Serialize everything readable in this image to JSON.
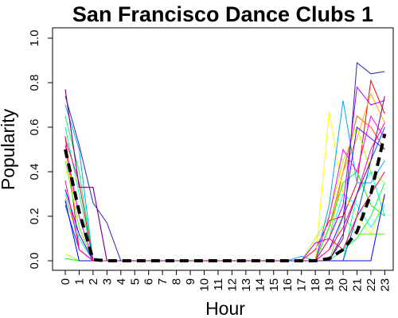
{
  "chart_data": {
    "type": "line",
    "title": "San Francisco Dance Clubs 1",
    "xlabel": "Hour",
    "ylabel": "Popularity",
    "x": [
      0,
      1,
      2,
      3,
      4,
      5,
      6,
      7,
      8,
      9,
      10,
      11,
      12,
      13,
      14,
      15,
      16,
      17,
      18,
      19,
      20,
      21,
      22,
      23
    ],
    "xticks": [
      "0",
      "1",
      "2",
      "3",
      "4",
      "5",
      "6",
      "7",
      "8",
      "9",
      "10",
      "11",
      "12",
      "13",
      "14",
      "15",
      "16",
      "17",
      "18",
      "19",
      "20",
      "21",
      "22",
      "23"
    ],
    "yticks": [
      "0.0",
      "0.2",
      "0.4",
      "0.6",
      "0.8",
      "1.0"
    ],
    "ylim": [
      0,
      1.0
    ],
    "grid": false,
    "series": [
      {
        "color": "#FF0000",
        "values": [
          0.56,
          0.05,
          0,
          0,
          0,
          0,
          0,
          0,
          0,
          0,
          0,
          0,
          0,
          0,
          0,
          0,
          0,
          0,
          0.05,
          0.18,
          0.2,
          0.35,
          0.81,
          0.66
        ]
      },
      {
        "color": "#FF5500",
        "values": [
          0.5,
          0.2,
          0,
          0,
          0,
          0,
          0,
          0,
          0,
          0,
          0,
          0,
          0,
          0,
          0,
          0,
          0,
          0,
          0,
          0.15,
          0.4,
          0.65,
          0.6,
          0.5
        ]
      },
      {
        "color": "#FFAA00",
        "values": [
          0.28,
          0.1,
          0,
          0,
          0,
          0,
          0,
          0,
          0,
          0,
          0,
          0,
          0,
          0,
          0,
          0,
          0,
          0,
          0,
          0.1,
          0.4,
          0.55,
          0.75,
          0.62
        ]
      },
      {
        "color": "#FFFF00",
        "values": [
          0.4,
          0.35,
          0,
          0,
          0,
          0,
          0,
          0,
          0,
          0,
          0,
          0,
          0,
          0,
          0,
          0,
          0,
          0,
          0,
          0.67,
          0.3,
          0.2,
          0.12,
          0.3
        ]
      },
      {
        "color": "#AAFF00",
        "values": [
          0.03,
          0,
          0,
          0,
          0,
          0,
          0,
          0,
          0,
          0,
          0,
          0,
          0,
          0,
          0,
          0,
          0,
          0,
          0.1,
          0.2,
          0.45,
          0.6,
          0.4,
          0.35
        ]
      },
      {
        "color": "#55FF00",
        "values": [
          0.45,
          0.15,
          0,
          0,
          0,
          0,
          0,
          0,
          0,
          0,
          0,
          0,
          0,
          0,
          0,
          0,
          0,
          0,
          0,
          0,
          0.2,
          0.12,
          0.12,
          0.12
        ]
      },
      {
        "color": "#00FF00",
        "values": [
          0.01,
          0,
          0,
          0,
          0,
          0,
          0,
          0,
          0,
          0,
          0,
          0,
          0,
          0,
          0,
          0,
          0,
          0,
          0,
          0.15,
          0.35,
          0.4,
          0.25,
          0.2
        ]
      },
      {
        "color": "#00FF55",
        "values": [
          0.65,
          0.4,
          0,
          0,
          0,
          0,
          0,
          0,
          0,
          0,
          0,
          0,
          0,
          0,
          0,
          0,
          0,
          0,
          0,
          0,
          0.05,
          0.1,
          0.2,
          0.35
        ]
      },
      {
        "color": "#00FFAA",
        "values": [
          0.6,
          0.3,
          0,
          0,
          0,
          0,
          0,
          0,
          0,
          0,
          0,
          0,
          0,
          0,
          0,
          0,
          0,
          0,
          0,
          0,
          0,
          0.3,
          0.4,
          0.2
        ]
      },
      {
        "color": "#00FFFF",
        "values": [
          0.3,
          0.1,
          0,
          0,
          0,
          0,
          0,
          0,
          0,
          0,
          0,
          0,
          0,
          0,
          0,
          0,
          0,
          0,
          0,
          0.1,
          0.3,
          0.25,
          0.15,
          0.25
        ]
      },
      {
        "color": "#00AAFF",
        "values": [
          0.7,
          0.5,
          0,
          0,
          0,
          0,
          0,
          0,
          0,
          0,
          0,
          0,
          0,
          0,
          0,
          0,
          0,
          0.02,
          0,
          0.25,
          0.72,
          0.35,
          0.35,
          0.45
        ]
      },
      {
        "color": "#0055FF",
        "values": [
          0.25,
          0.05,
          0,
          0,
          0,
          0,
          0,
          0,
          0,
          0,
          0,
          0,
          0,
          0,
          0,
          0,
          0,
          0,
          0,
          0,
          0,
          0.2,
          0.45,
          0.6
        ]
      },
      {
        "color": "#0000FF",
        "values": [
          0.27,
          0,
          0,
          0,
          0,
          0,
          0,
          0,
          0,
          0,
          0,
          0,
          0,
          0,
          0,
          0,
          0,
          0,
          0,
          0,
          0,
          0,
          0,
          0.3
        ]
      },
      {
        "color": "#2A2AAA",
        "values": [
          0.74,
          0.52,
          0.26,
          0.17,
          0,
          0,
          0,
          0,
          0,
          0,
          0,
          0,
          0,
          0,
          0,
          0,
          0,
          0,
          0,
          0,
          0.1,
          0.89,
          0.84,
          0.85
        ]
      },
      {
        "color": "#5500FF",
        "values": [
          0.32,
          0.12,
          0,
          0,
          0,
          0,
          0,
          0,
          0,
          0,
          0,
          0,
          0,
          0,
          0,
          0,
          0,
          0,
          0,
          0.05,
          0.2,
          0.6,
          0.55,
          0.5
        ]
      },
      {
        "color": "#AA00FF",
        "values": [
          0.77,
          0.33,
          0.33,
          0,
          0,
          0,
          0,
          0,
          0,
          0,
          0,
          0,
          0,
          0,
          0,
          0,
          0,
          0,
          0.08,
          0.1,
          0.25,
          0.78,
          0.7,
          0.72
        ]
      },
      {
        "color": "#FF00FF",
        "values": [
          0.52,
          0.2,
          0,
          0,
          0,
          0,
          0,
          0,
          0,
          0,
          0,
          0,
          0,
          0,
          0,
          0,
          0,
          0,
          0,
          0.2,
          0.5,
          0.4,
          0.65,
          0.55
        ]
      },
      {
        "color": "#FF00AA",
        "values": [
          0.36,
          0.05,
          0,
          0,
          0,
          0,
          0,
          0,
          0,
          0,
          0,
          0,
          0,
          0,
          0,
          0,
          0,
          0,
          0,
          0.05,
          0.15,
          0.3,
          0.5,
          0.62
        ]
      },
      {
        "color": "#FF0055",
        "values": [
          0.55,
          0.35,
          0,
          0,
          0,
          0,
          0,
          0,
          0,
          0,
          0,
          0,
          0,
          0,
          0,
          0,
          0,
          0,
          0,
          0.1,
          0.05,
          0.2,
          0.3,
          0.4
        ]
      },
      {
        "color": "#800080",
        "values": [
          0.77,
          0.33,
          0.33,
          0,
          0,
          0,
          0,
          0,
          0,
          0,
          0,
          0,
          0,
          0,
          0,
          0,
          0,
          0,
          0,
          0,
          0.12,
          0.3,
          0.45,
          0.74
        ]
      }
    ],
    "mean_series": {
      "color": "#000000",
      "style": "dashed",
      "values": [
        0.5,
        0.22,
        0.005,
        0,
        0,
        0,
        0,
        0,
        0,
        0,
        0,
        0,
        0,
        0,
        0,
        0,
        0,
        0,
        0,
        0.01,
        0.05,
        0.13,
        0.3,
        0.57
      ]
    }
  }
}
